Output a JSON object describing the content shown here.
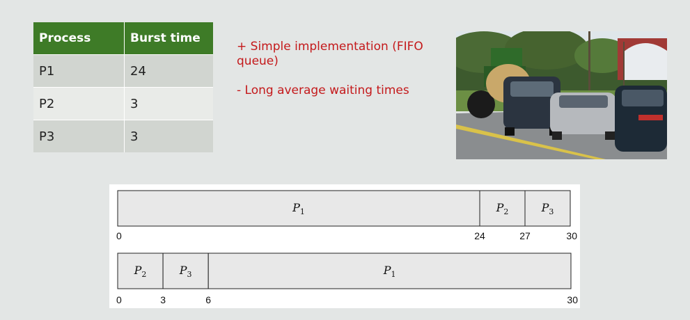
{
  "table": {
    "headers": [
      "Process",
      "Burst time"
    ],
    "rows": [
      [
        "P1",
        "24"
      ],
      [
        "P2",
        "3"
      ],
      [
        "P3",
        "3"
      ]
    ]
  },
  "bullets": [
    "+ Simple implementation (FIFO queue)",
    "- Long average waiting times"
  ],
  "colors": {
    "header_green": "#3e7b27",
    "bullet_red": "#c4191b",
    "background": "#e3e6e5"
  },
  "photo": {
    "subject": "tractor-and-cars-road-photo"
  },
  "gantt": {
    "axis_max": 30,
    "charts": [
      {
        "segments": [
          {
            "name": "P",
            "sub": "1",
            "start": 0,
            "end": 24
          },
          {
            "name": "P",
            "sub": "2",
            "start": 24,
            "end": 27
          },
          {
            "name": "P",
            "sub": "3",
            "start": 27,
            "end": 30
          }
        ],
        "ticks": [
          "0",
          "24",
          "27",
          "30"
        ]
      },
      {
        "segments": [
          {
            "name": "P",
            "sub": "2",
            "start": 0,
            "end": 3
          },
          {
            "name": "P",
            "sub": "3",
            "start": 3,
            "end": 6
          },
          {
            "name": "P",
            "sub": "1",
            "start": 6,
            "end": 30
          }
        ],
        "ticks": [
          "0",
          "3",
          "6",
          "30"
        ]
      }
    ]
  }
}
